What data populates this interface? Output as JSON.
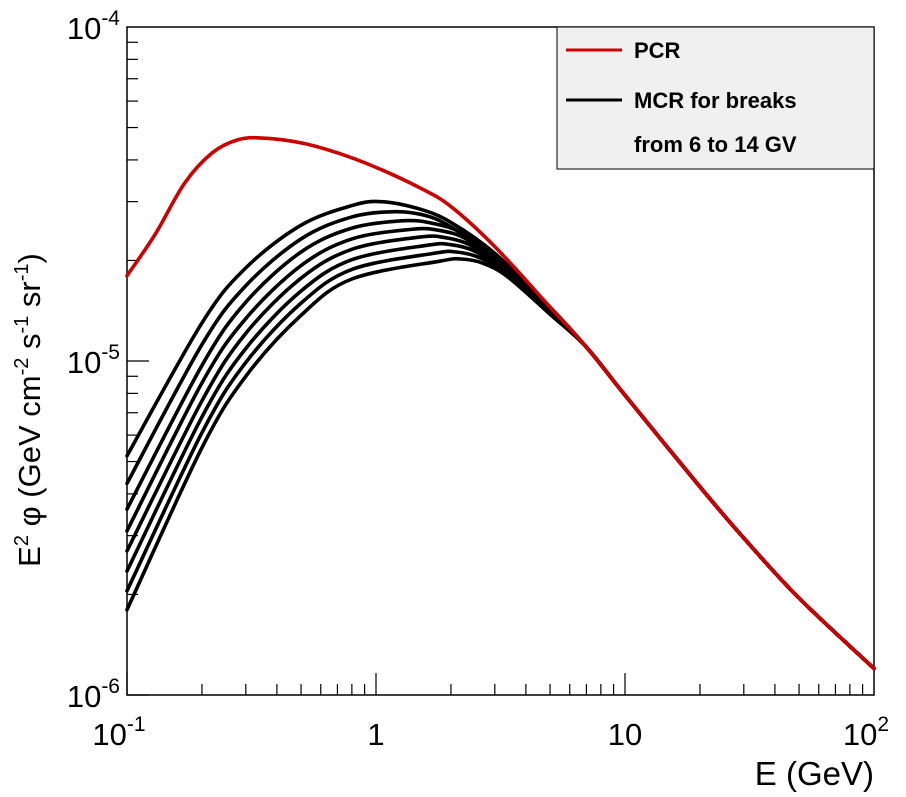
{
  "chart_data": {
    "type": "line",
    "xlabel": "E (GeV)",
    "ylabel": {
      "prefix": "E",
      "prefix_sup": "2",
      "symbol": " φ (GeV cm",
      "sup1": "-2",
      "mid1": " s",
      "sup2": "-1",
      "mid2": " sr",
      "sup3": "-1",
      "suffix": ")"
    },
    "x_scale": "log",
    "y_scale": "log",
    "xlim": [
      0.1,
      100
    ],
    "ylim": [
      1e-06,
      0.0001
    ],
    "grid": false,
    "x_ticks": [
      {
        "value": 0.1,
        "base": "10",
        "exp": "-1"
      },
      {
        "value": 1,
        "base": "1",
        "exp": ""
      },
      {
        "value": 10,
        "base": "10",
        "exp": ""
      },
      {
        "value": 100,
        "base": "10",
        "exp": "2"
      }
    ],
    "y_ticks": [
      {
        "value": 1e-06,
        "base": "10",
        "exp": "-6"
      },
      {
        "value": 1e-05,
        "base": "10",
        "exp": "-5"
      },
      {
        "value": 0.0001,
        "base": "10",
        "exp": "-4"
      }
    ],
    "legend": {
      "position": "top-right",
      "entries": [
        {
          "label": "PCR",
          "color": "#cc0000"
        },
        {
          "label": "MCR for breaks",
          "color": "#000000"
        },
        {
          "label": "from 6 to 14 GV",
          "color": null
        }
      ]
    },
    "series": [
      {
        "name": "PCR",
        "color": "#cc0000",
        "points": [
          [
            0.1,
            1.8e-05
          ],
          [
            0.13,
            2.4e-05
          ],
          [
            0.17,
            3.4e-05
          ],
          [
            0.22,
            4.2e-05
          ],
          [
            0.28,
            4.6e-05
          ],
          [
            0.35,
            4.65e-05
          ],
          [
            0.5,
            4.5e-05
          ],
          [
            0.7,
            4.2e-05
          ],
          [
            1.0,
            3.8e-05
          ],
          [
            1.5,
            3.3e-05
          ],
          [
            2.0,
            2.9e-05
          ],
          [
            3.0,
            2.2e-05
          ],
          [
            5.0,
            1.45e-05
          ],
          [
            7.0,
            1.1e-05
          ],
          [
            10,
            7.9e-06
          ],
          [
            20,
            4.2e-06
          ],
          [
            30,
            2.95e-06
          ],
          [
            50,
            1.95e-06
          ],
          [
            100,
            1.2e-06
          ]
        ]
      },
      {
        "color": "#000000",
        "points": [
          [
            0.1,
            5.2e-06
          ],
          [
            0.2,
            1.3e-05
          ],
          [
            0.3,
            1.9e-05
          ],
          [
            0.5,
            2.55e-05
          ],
          [
            0.8,
            2.92e-05
          ],
          [
            1.05,
            3e-05
          ],
          [
            1.5,
            2.85e-05
          ],
          [
            2.0,
            2.6e-05
          ],
          [
            3.0,
            2.1e-05
          ],
          [
            5.0,
            1.45e-05
          ],
          [
            7.0,
            1.1e-05
          ],
          [
            10,
            7.9e-06
          ],
          [
            20,
            4.2e-06
          ],
          [
            30,
            2.95e-06
          ],
          [
            50,
            1.95e-06
          ],
          [
            100,
            1.2e-06
          ]
        ]
      },
      {
        "color": "#000000",
        "points": [
          [
            0.1,
            4.3e-06
          ],
          [
            0.2,
            1.12e-05
          ],
          [
            0.3,
            1.68e-05
          ],
          [
            0.5,
            2.32e-05
          ],
          [
            0.8,
            2.7e-05
          ],
          [
            1.2,
            2.8e-05
          ],
          [
            1.6,
            2.72e-05
          ],
          [
            2.0,
            2.52e-05
          ],
          [
            3.0,
            2.06e-05
          ],
          [
            5.0,
            1.44e-05
          ],
          [
            7.0,
            1.1e-05
          ],
          [
            10,
            7.9e-06
          ],
          [
            20,
            4.2e-06
          ],
          [
            30,
            2.95e-06
          ],
          [
            50,
            1.95e-06
          ],
          [
            100,
            1.2e-06
          ]
        ]
      },
      {
        "color": "#000000",
        "points": [
          [
            0.1,
            3.6e-06
          ],
          [
            0.2,
            9.7e-06
          ],
          [
            0.3,
            1.5e-05
          ],
          [
            0.5,
            2.12e-05
          ],
          [
            0.8,
            2.5e-05
          ],
          [
            1.3,
            2.63e-05
          ],
          [
            1.7,
            2.58e-05
          ],
          [
            2.2,
            2.42e-05
          ],
          [
            3.0,
            2.02e-05
          ],
          [
            5.0,
            1.43e-05
          ],
          [
            7.0,
            1.1e-05
          ],
          [
            10,
            7.9e-06
          ],
          [
            20,
            4.2e-06
          ],
          [
            30,
            2.95e-06
          ],
          [
            50,
            1.95e-06
          ],
          [
            100,
            1.2e-06
          ]
        ]
      },
      {
        "color": "#000000",
        "points": [
          [
            0.1,
            3.1e-06
          ],
          [
            0.2,
            8.6e-06
          ],
          [
            0.3,
            1.34e-05
          ],
          [
            0.5,
            1.93e-05
          ],
          [
            0.8,
            2.32e-05
          ],
          [
            1.4,
            2.48e-05
          ],
          [
            1.8,
            2.46e-05
          ],
          [
            2.3,
            2.32e-05
          ],
          [
            3.0,
            1.98e-05
          ],
          [
            5.0,
            1.42e-05
          ],
          [
            7.0,
            1.1e-05
          ],
          [
            10,
            7.9e-06
          ],
          [
            20,
            4.2e-06
          ],
          [
            30,
            2.95e-06
          ],
          [
            50,
            1.95e-06
          ],
          [
            100,
            1.2e-06
          ]
        ]
      },
      {
        "color": "#000000",
        "points": [
          [
            0.1,
            2.7e-06
          ],
          [
            0.2,
            7.6e-06
          ],
          [
            0.3,
            1.21e-05
          ],
          [
            0.5,
            1.77e-05
          ],
          [
            0.8,
            2.16e-05
          ],
          [
            1.5,
            2.35e-05
          ],
          [
            1.9,
            2.34e-05
          ],
          [
            2.4,
            2.22e-05
          ],
          [
            3.0,
            1.94e-05
          ],
          [
            5.0,
            1.41e-05
          ],
          [
            7.0,
            1.1e-05
          ],
          [
            10,
            7.9e-06
          ],
          [
            20,
            4.2e-06
          ],
          [
            30,
            2.95e-06
          ],
          [
            50,
            1.95e-06
          ],
          [
            100,
            1.2e-06
          ]
        ]
      },
      {
        "color": "#000000",
        "points": [
          [
            0.1,
            2.35e-06
          ],
          [
            0.2,
            6.8e-06
          ],
          [
            0.3,
            1.09e-05
          ],
          [
            0.5,
            1.62e-05
          ],
          [
            0.8,
            2.01e-05
          ],
          [
            1.6,
            2.22e-05
          ],
          [
            2.0,
            2.23e-05
          ],
          [
            2.5,
            2.13e-05
          ],
          [
            3.2,
            1.88e-05
          ],
          [
            5.0,
            1.4e-05
          ],
          [
            7.0,
            1.1e-05
          ],
          [
            10,
            7.9e-06
          ],
          [
            20,
            4.2e-06
          ],
          [
            30,
            2.95e-06
          ],
          [
            50,
            1.95e-06
          ],
          [
            100,
            1.2e-06
          ]
        ]
      },
      {
        "color": "#000000",
        "points": [
          [
            0.1,
            2.05e-06
          ],
          [
            0.2,
            6.1e-06
          ],
          [
            0.3,
            9.9e-06
          ],
          [
            0.5,
            1.49e-05
          ],
          [
            0.8,
            1.88e-05
          ],
          [
            1.7,
            2.1e-05
          ],
          [
            2.1,
            2.12e-05
          ],
          [
            2.6,
            2.04e-05
          ],
          [
            3.3,
            1.83e-05
          ],
          [
            5.0,
            1.39e-05
          ],
          [
            7.0,
            1.1e-05
          ],
          [
            10,
            7.9e-06
          ],
          [
            20,
            4.2e-06
          ],
          [
            30,
            2.95e-06
          ],
          [
            50,
            1.95e-06
          ],
          [
            100,
            1.2e-06
          ]
        ]
      },
      {
        "color": "#000000",
        "points": [
          [
            0.1,
            1.8e-06
          ],
          [
            0.2,
            5.5e-06
          ],
          [
            0.3,
            9e-06
          ],
          [
            0.5,
            1.37e-05
          ],
          [
            0.8,
            1.76e-05
          ],
          [
            1.8,
            1.99e-05
          ],
          [
            2.2,
            2.02e-05
          ],
          [
            2.7,
            1.96e-05
          ],
          [
            3.4,
            1.78e-05
          ],
          [
            5.0,
            1.38e-05
          ],
          [
            7.0,
            1.1e-05
          ],
          [
            10,
            7.9e-06
          ],
          [
            20,
            4.2e-06
          ],
          [
            30,
            2.95e-06
          ],
          [
            50,
            1.95e-06
          ],
          [
            100,
            1.2e-06
          ]
        ]
      }
    ]
  }
}
